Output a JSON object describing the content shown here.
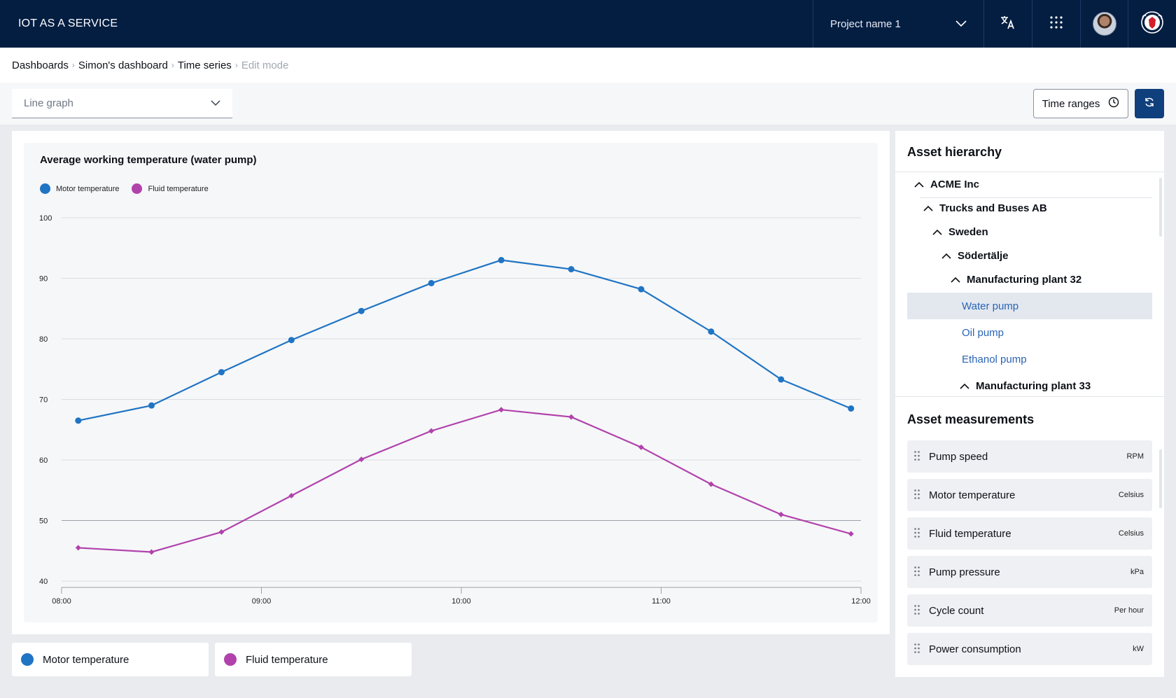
{
  "header": {
    "brand": "IOT AS A SERVICE",
    "project": "Project name 1"
  },
  "breadcrumb": [
    "Dashboards",
    "Simon's dashboard",
    "Time series",
    "Edit mode"
  ],
  "toolbar": {
    "graph_type": "Line graph",
    "time_ranges": "Time ranges"
  },
  "colors": {
    "primary": "#041e42",
    "motor": "#1f74c4",
    "fluid": "#b142ac",
    "button": "#0f3f7c"
  },
  "chart_data": {
    "type": "line",
    "title": "Average working temperature (water pump)",
    "xlabel": "",
    "ylabel": "",
    "x_ticks": [
      "08:00",
      "09:00",
      "10:00",
      "11:00",
      "12:00"
    ],
    "xlim": [
      "08:00",
      "12:00"
    ],
    "ylim": [
      40,
      100
    ],
    "y_ticks": [
      40,
      50,
      60,
      70,
      80,
      90,
      100
    ],
    "legend_position": "top-left",
    "grid": true,
    "series": [
      {
        "name": "Motor temperature",
        "color": "#1f74c4",
        "marker": "circle",
        "points": [
          {
            "x": "08:05",
            "y": 66.5
          },
          {
            "x": "08:27",
            "y": 69.0
          },
          {
            "x": "08:48",
            "y": 74.5
          },
          {
            "x": "09:09",
            "y": 79.8
          },
          {
            "x": "09:30",
            "y": 84.6
          },
          {
            "x": "09:51",
            "y": 89.2
          },
          {
            "x": "10:12",
            "y": 93.0
          },
          {
            "x": "10:33",
            "y": 91.5
          },
          {
            "x": "10:54",
            "y": 88.2
          },
          {
            "x": "11:15",
            "y": 81.2
          },
          {
            "x": "11:36",
            "y": 73.3
          },
          {
            "x": "11:57",
            "y": 68.5
          }
        ]
      },
      {
        "name": "Fluid temperature",
        "color": "#b142ac",
        "marker": "diamond",
        "points": [
          {
            "x": "08:05",
            "y": 45.5
          },
          {
            "x": "08:27",
            "y": 44.8
          },
          {
            "x": "08:48",
            "y": 48.1
          },
          {
            "x": "09:09",
            "y": 54.1
          },
          {
            "x": "09:30",
            "y": 60.1
          },
          {
            "x": "09:51",
            "y": 64.8
          },
          {
            "x": "10:12",
            "y": 68.3
          },
          {
            "x": "10:33",
            "y": 67.1
          },
          {
            "x": "10:54",
            "y": 62.1
          },
          {
            "x": "11:15",
            "y": 56.0
          },
          {
            "x": "11:36",
            "y": 51.0
          },
          {
            "x": "11:57",
            "y": 47.8
          }
        ]
      }
    ]
  },
  "bottom_legend": [
    "Motor temperature",
    "Fluid temperature"
  ],
  "asset_hierarchy": {
    "title": "Asset hierarchy",
    "nodes": [
      {
        "label": "ACME Inc",
        "level": 0,
        "type": "parent"
      },
      {
        "label": "Trucks and Buses AB",
        "level": 1,
        "type": "parent"
      },
      {
        "label": "Sweden",
        "level": 2,
        "type": "parent"
      },
      {
        "label": "Södertälje",
        "level": 3,
        "type": "parent"
      },
      {
        "label": "Manufacturing plant 32",
        "level": 4,
        "type": "parent"
      },
      {
        "label": "Water pump",
        "level": 5,
        "type": "leaf",
        "selected": true
      },
      {
        "label": "Oil pump",
        "level": 5,
        "type": "leaf"
      },
      {
        "label": "Ethanol pump",
        "level": 5,
        "type": "leaf"
      },
      {
        "label": "Manufacturing plant 33",
        "level": 5,
        "type": "parent"
      }
    ]
  },
  "asset_measurements": {
    "title": "Asset measurements",
    "items": [
      {
        "name": "Pump speed",
        "unit": "RPM"
      },
      {
        "name": "Motor temperature",
        "unit": "Celsius"
      },
      {
        "name": "Fluid temperature",
        "unit": "Celsius"
      },
      {
        "name": "Pump pressure",
        "unit": "kPa"
      },
      {
        "name": "Cycle count",
        "unit": "Per hour"
      },
      {
        "name": "Power consumption",
        "unit": "kW"
      }
    ]
  }
}
